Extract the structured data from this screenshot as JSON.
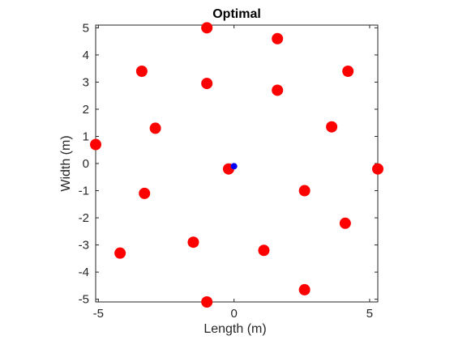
{
  "chart_data": {
    "type": "scatter",
    "title": "Optimal",
    "xlabel": "Length (m)",
    "ylabel": "Width (m)",
    "xlim": [
      -5.1,
      5.3
    ],
    "ylim": [
      -5.1,
      5.1
    ],
    "x_ticks": [
      -5,
      0,
      5
    ],
    "x_tick_labels": [
      "-5",
      "0",
      "5"
    ],
    "y_ticks": [
      -5,
      -4,
      -3,
      -2,
      -1,
      0,
      1,
      2,
      3,
      4,
      5
    ],
    "y_tick_labels": [
      "-5",
      "-4",
      "-3",
      "-2",
      "-1",
      "0",
      "1",
      "2",
      "3",
      "4",
      "5"
    ],
    "grid": false,
    "series": [
      {
        "color": "#ff0000",
        "marker": "filled-circle-large",
        "x": [
          -1.0,
          1.6,
          -3.4,
          4.2,
          -1.0,
          1.6,
          -2.9,
          3.6,
          -5.1,
          -0.2,
          5.3,
          -3.3,
          2.6,
          4.1,
          -1.5,
          -4.2,
          1.1,
          2.6,
          -1.0
        ],
        "y": [
          5.0,
          4.6,
          3.4,
          3.4,
          2.95,
          2.7,
          1.3,
          1.35,
          0.7,
          -0.2,
          -0.2,
          -1.1,
          -1.0,
          -2.2,
          -2.9,
          -3.3,
          -3.2,
          -4.65,
          -5.1
        ]
      },
      {
        "color": "#0000ff",
        "marker": "filled-circle-small",
        "x": [
          0.0
        ],
        "y": [
          -0.1
        ]
      }
    ]
  }
}
